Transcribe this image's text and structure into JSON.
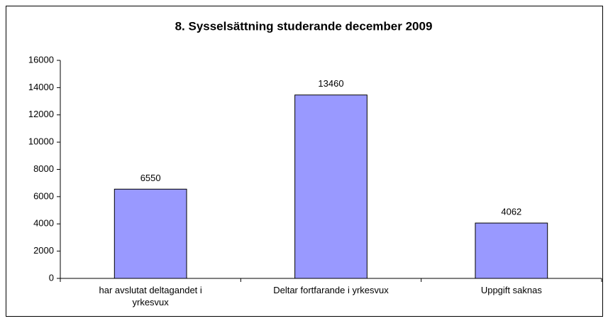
{
  "chart_data": {
    "type": "bar",
    "title": "8. Sysselsättning studerande december 2009",
    "categories": [
      "har avslutat deltagandet i yrkesvux",
      "Deltar fortfarande i yrkesvux",
      "Uppgift saknas"
    ],
    "values": [
      6550,
      13460,
      4062
    ],
    "color": "#9999ff",
    "ylim": [
      0,
      16000
    ],
    "yticks": [
      0,
      2000,
      4000,
      6000,
      8000,
      10000,
      12000,
      14000,
      16000
    ],
    "grid": false
  }
}
